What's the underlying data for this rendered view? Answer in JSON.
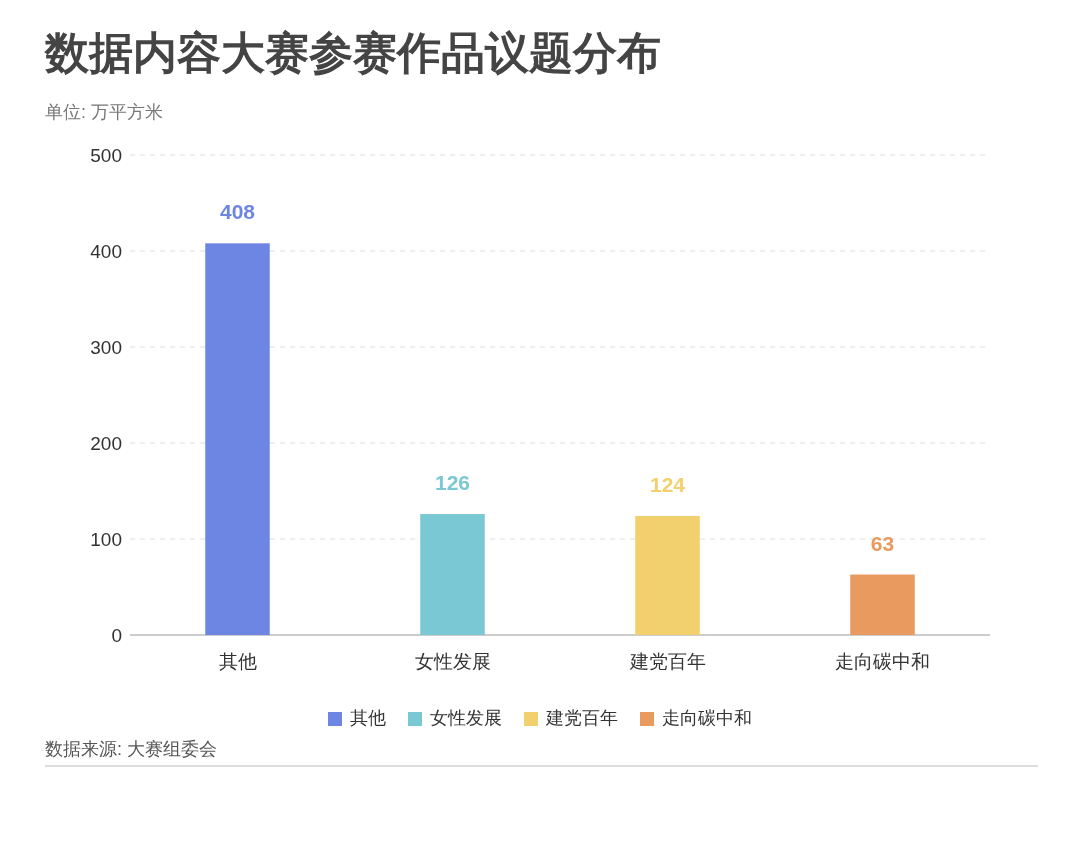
{
  "chart_data": {
    "type": "bar",
    "title": "数据内容大赛参赛作品议题分布",
    "subtitle": "单位: 万平方米",
    "categories": [
      "其他",
      "女性发展",
      "建党百年",
      "走向碳中和"
    ],
    "series": [
      {
        "name": "其他",
        "color": "#6e86e3",
        "values": [
          408,
          null,
          null,
          null
        ]
      },
      {
        "name": "女性发展",
        "color": "#7ac8d4",
        "values": [
          null,
          126,
          null,
          null
        ]
      },
      {
        "name": "建党百年",
        "color": "#f2d06e",
        "values": [
          null,
          null,
          124,
          null
        ]
      },
      {
        "name": "走向碳中和",
        "color": "#e89a5f",
        "values": [
          null,
          null,
          null,
          63
        ]
      }
    ],
    "ylim": [
      0,
      500
    ],
    "yticks": [
      0,
      100,
      200,
      300,
      400,
      500
    ],
    "grid": "y",
    "legend": "bottom",
    "data_labels": true,
    "annotations": [
      "数据来源: 大赛组委会"
    ]
  }
}
